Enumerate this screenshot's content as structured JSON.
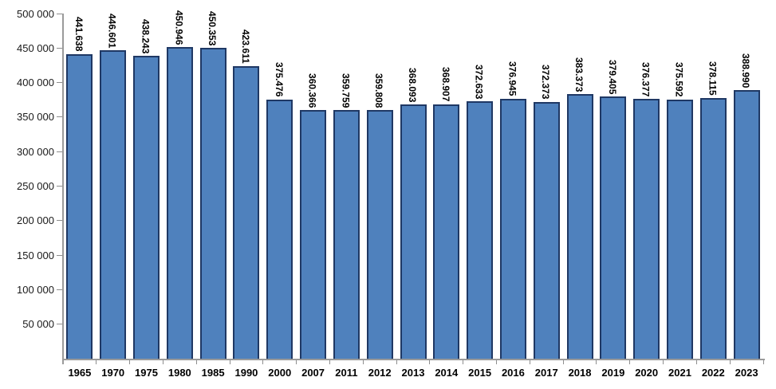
{
  "chart_data": {
    "type": "bar",
    "title": "",
    "xlabel": "",
    "ylabel": "",
    "categories": [
      "1965",
      "1970",
      "1975",
      "1980",
      "1985",
      "1990",
      "2000",
      "2007",
      "2011",
      "2012",
      "2013",
      "2014",
      "2015",
      "2016",
      "2017",
      "2018",
      "2019",
      "2020",
      "2021",
      "2022",
      "2023"
    ],
    "values": [
      441638,
      446601,
      438243,
      450946,
      450353,
      423611,
      375476,
      360366,
      359759,
      359808,
      368093,
      368907,
      372633,
      376945,
      372373,
      383373,
      379405,
      376377,
      375592,
      378115,
      388990
    ],
    "value_labels": [
      "441.638",
      "446.601",
      "438.243",
      "450.946",
      "450.353",
      "423.611",
      "375.476",
      "360.366",
      "359.759",
      "359.808",
      "368.093",
      "368.907",
      "372.633",
      "376.945",
      "372.373",
      "383.373",
      "379.405",
      "376.377",
      "375.592",
      "378.115",
      "388.990"
    ],
    "ylim": [
      0,
      500000
    ],
    "ytick_step": 50000,
    "ytick_labels": [
      "500 000",
      "450 000",
      "400 000",
      "350 000",
      "300 000",
      "250 000",
      "200 000",
      "150 000",
      "100 000",
      "50 000"
    ],
    "ytick_values": [
      500000,
      450000,
      400000,
      350000,
      300000,
      250000,
      200000,
      150000,
      100000,
      50000
    ],
    "grid": false,
    "legend": false
  },
  "style": {
    "bar_fill": "#4f81bd",
    "bar_border": "#1f3864",
    "axis_color": "#9a9a9a",
    "tick_color": "#8e8e8e",
    "text_color": "#000000",
    "ylabel_color": "#1a1a1a"
  }
}
